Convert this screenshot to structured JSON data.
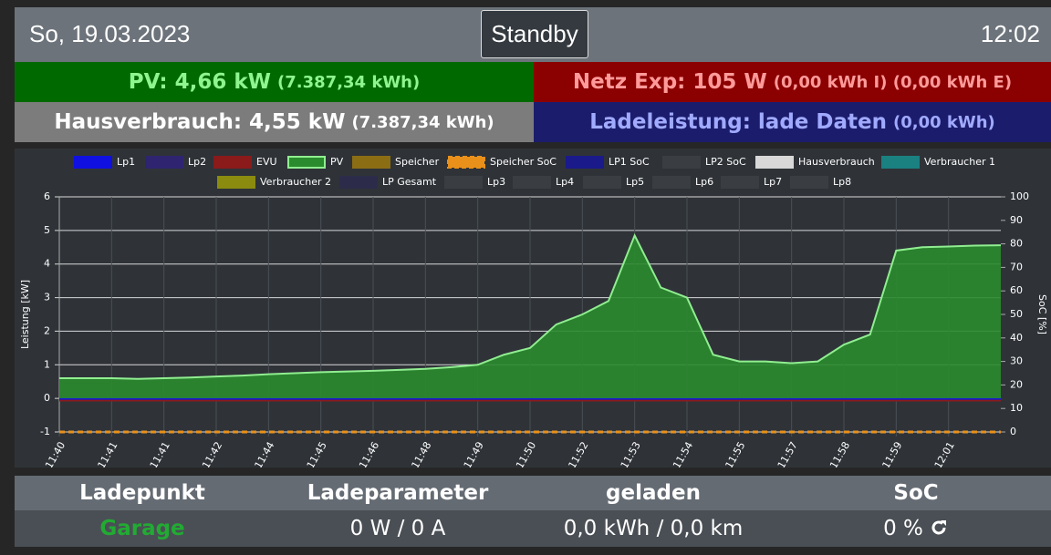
{
  "header": {
    "date": "So, 19.03.2023",
    "status": "Standby",
    "time": "12:02"
  },
  "tiles": {
    "pv": {
      "label": "PV: 4,66 kW",
      "extra": "(7.387,34 kWh)"
    },
    "grid": {
      "label": "Netz Exp: 105 W",
      "extra": "(0,00 kWh I) (0,00 kWh E)"
    },
    "house": {
      "label": "Hausverbrauch: 4,55 kW",
      "extra": "(7.387,34 kWh)"
    },
    "charge": {
      "label": "Ladeleistung: lade Daten",
      "extra": "(0,00 kWh)"
    }
  },
  "chart_data": {
    "type": "line",
    "y_label": "Leistung [kW]",
    "y2_label": "SoC [%]",
    "categories": [
      "11:40",
      null,
      "11:41",
      null,
      "11:41",
      null,
      "11:42",
      null,
      "11:44",
      null,
      "11:45",
      null,
      "11:46",
      null,
      "11:48",
      null,
      "11:49",
      null,
      "11:50",
      null,
      "11:52",
      null,
      "11:53",
      null,
      "11:54",
      null,
      "11:55",
      null,
      "11:57",
      null,
      "11:58",
      null,
      "11:59",
      null,
      "12:01",
      null,
      null
    ],
    "ylim": [
      -1,
      6
    ],
    "yticks": [
      -1,
      0,
      1,
      2,
      3,
      4,
      5,
      6
    ],
    "y2lim": [
      0,
      100
    ],
    "y2ticks": [
      0,
      10,
      20,
      30,
      40,
      50,
      60,
      70,
      80,
      90,
      100
    ],
    "grid": true,
    "series": [
      {
        "name": "Lp1",
        "color": "#1010e0",
        "values": [
          0,
          0,
          0,
          0,
          0,
          0,
          0,
          0,
          0,
          0,
          0,
          0,
          0,
          0,
          0,
          0,
          0,
          0,
          0,
          0,
          0,
          0,
          0,
          0,
          0,
          0,
          0,
          0,
          0,
          0,
          0,
          0,
          0,
          0,
          0,
          0,
          0
        ]
      },
      {
        "name": "Lp2",
        "color": "#2e2470"
      },
      {
        "name": "EVU",
        "color": "#8b1a1a",
        "values": [
          -0.05,
          -0.05,
          -0.05,
          -0.05,
          -0.05,
          -0.05,
          -0.05,
          -0.05,
          -0.05,
          -0.05,
          -0.05,
          -0.05,
          -0.05,
          -0.05,
          -0.05,
          -0.05,
          -0.05,
          -0.05,
          -0.05,
          -0.05,
          -0.05,
          -0.05,
          -0.05,
          -0.05,
          -0.05,
          -0.05,
          -0.05,
          -0.05,
          -0.05,
          -0.05,
          -0.05,
          -0.05,
          -0.05,
          -0.05,
          -0.05,
          -0.05,
          -0.05
        ]
      },
      {
        "name": "PV",
        "color": "#2a8a2e",
        "line_color": "#90ee90",
        "fill": true,
        "values": [
          0.6,
          0.6,
          0.6,
          0.58,
          0.6,
          0.62,
          0.65,
          0.68,
          0.72,
          0.75,
          0.78,
          0.8,
          0.82,
          0.85,
          0.88,
          0.93,
          1.0,
          1.3,
          1.5,
          2.2,
          2.5,
          2.9,
          4.85,
          3.3,
          3.0,
          1.3,
          1.1,
          1.1,
          1.05,
          1.1,
          1.6,
          1.9,
          4.4,
          4.5,
          4.52,
          4.55,
          4.56
        ]
      },
      {
        "name": "Speicher",
        "color": "#8b6d14"
      },
      {
        "name": "Speicher SoC",
        "color": "#e8901a",
        "dashed": true,
        "axis": "y2",
        "values": [
          0,
          0,
          0,
          0,
          0,
          0,
          0,
          0,
          0,
          0,
          0,
          0,
          0,
          0,
          0,
          0,
          0,
          0,
          0,
          0,
          0,
          0,
          0,
          0,
          0,
          0,
          0,
          0,
          0,
          0,
          0,
          0,
          0,
          0,
          0,
          0,
          0
        ]
      },
      {
        "name": "LP1 SoC",
        "color": "#1a1a8b"
      },
      {
        "name": "LP2 SoC",
        "color": "#3a3d42"
      },
      {
        "name": "Hausverbrauch",
        "color": "#d8d8d8"
      },
      {
        "name": "Verbraucher 1",
        "color": "#1a8080"
      },
      {
        "name": "Verbraucher 2",
        "color": "#8b8b10"
      },
      {
        "name": "LP Gesamt",
        "color": "#2c2c4a"
      },
      {
        "name": "Lp3",
        "color": "#3a3d42"
      },
      {
        "name": "Lp4",
        "color": "#3a3d42"
      },
      {
        "name": "Lp5",
        "color": "#3a3d42"
      },
      {
        "name": "Lp6",
        "color": "#3a3d42"
      },
      {
        "name": "Lp7",
        "color": "#3a3d42"
      },
      {
        "name": "Lp8",
        "color": "#3a3d42"
      }
    ]
  },
  "table": {
    "headers": [
      "Ladepunkt",
      "Ladeparameter",
      "geladen",
      "SoC"
    ],
    "rows": [
      [
        "Garage",
        "0 W / 0 A",
        "0,0 kWh / 0,0 km",
        "0 %"
      ]
    ]
  }
}
